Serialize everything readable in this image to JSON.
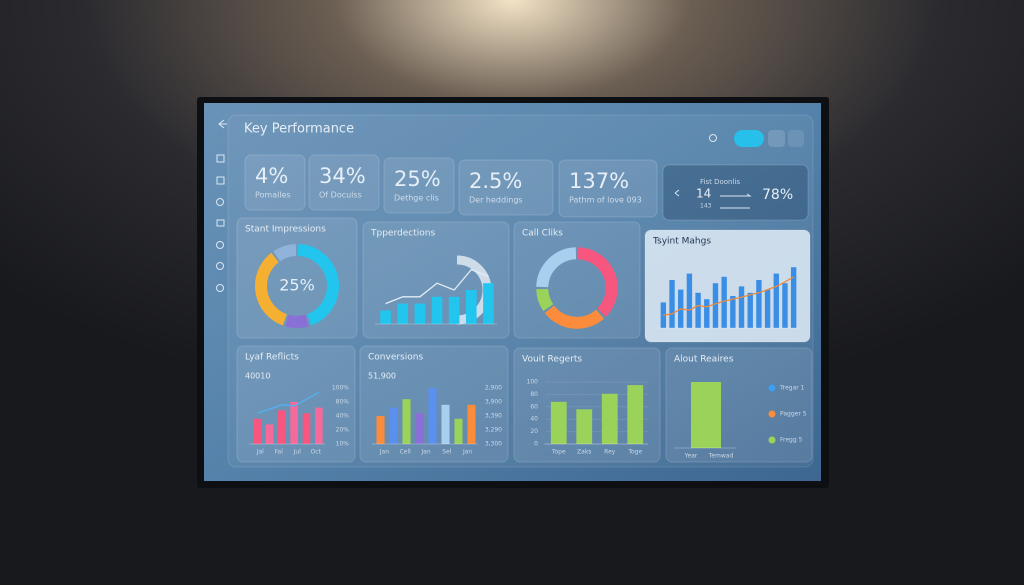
{
  "header": {
    "title": "Key Performance"
  },
  "kpis": [
    {
      "value": "4%",
      "label": "Pomalles"
    },
    {
      "value": "34%",
      "label": "Of Doculss"
    },
    {
      "value": "25%",
      "label": "Dethge clis"
    },
    {
      "value": "2.5%",
      "label": "Der heddings"
    },
    {
      "value": "137%",
      "label": "Pathm of love 093"
    }
  ],
  "summary": {
    "title": "Fist Doonlis",
    "value": "14",
    "sub": "143",
    "pct": "78%"
  },
  "panels": [
    {
      "title": "Stant Impressions",
      "type": "donut",
      "center": "25%",
      "values": [
        45,
        10,
        35,
        10
      ],
      "colors": [
        "#22c5ee",
        "#8a6fd6",
        "#f5b031",
        "#8fb3d9"
      ]
    },
    {
      "title": "Tpperdections",
      "type": "bars_line",
      "bars": [
        2,
        3,
        3,
        4,
        4,
        5,
        6
      ],
      "line": [
        3,
        4,
        4,
        6,
        5,
        8,
        7
      ],
      "ylim": [
        0,
        10
      ],
      "colors": [
        "#22c5ee"
      ],
      "line_color": "#e3edf6"
    },
    {
      "title": "Call Cliks",
      "type": "donut",
      "values": [
        38,
        27,
        10,
        25
      ],
      "colors": [
        "#f7577e",
        "#fb8c3c",
        "#9bd35a",
        "#a9cfee"
      ]
    },
    {
      "title": "Tsyint Mahgs",
      "type": "bars_line",
      "bars": [
        40,
        75,
        60,
        85,
        55,
        45,
        70,
        80,
        50,
        65,
        55,
        75,
        60,
        85,
        70,
        95
      ],
      "line": [
        20,
        22,
        30,
        28,
        35,
        33,
        38,
        42,
        45,
        48,
        52,
        55,
        60,
        65,
        72,
        80
      ],
      "ylim": [
        0,
        100
      ],
      "colors": [
        "#3b8ee6"
      ],
      "line_color": "#f08a3c"
    },
    {
      "title": "Lyaf Reflicts",
      "subtitle": "40010",
      "type": "bars_line",
      "axis_labels": [
        "100%",
        "80%",
        "40%",
        "20%",
        "10%"
      ],
      "xlabels": [
        "Jal",
        "Fal",
        "Jul",
        "Oct"
      ],
      "bars": [
        45,
        35,
        60,
        75,
        55,
        65
      ],
      "line": [
        55,
        62,
        70,
        68,
        80,
        92
      ],
      "ylim": [
        0,
        100
      ],
      "colors": [
        "#f7577e",
        "#f56a9a"
      ],
      "line_color": "#4fb3f0"
    },
    {
      "title": "Conversions",
      "subtitle": "51,900",
      "type": "bars_line",
      "axis_labels": [
        "2,900",
        "3,900",
        "3,390",
        "3,290",
        "3,300"
      ],
      "xlabels": [
        "Jan",
        "Cell",
        "Jan",
        "Sel",
        "Jan"
      ],
      "bars": [
        50,
        65,
        80,
        55,
        100,
        70,
        45,
        70
      ],
      "ylim": [
        0,
        100
      ],
      "colors": [
        "#fb8c3c",
        "#5b8ff0",
        "#9bd35a",
        "#8a6fd6",
        "#5b8ff0",
        "#a9cfee",
        "#9bd35a",
        "#fb8c3c"
      ]
    },
    {
      "title": "Vouit Regerts",
      "type": "bars_line",
      "yticks": [
        0,
        20,
        40,
        60,
        80,
        100
      ],
      "ylim": [
        0,
        100
      ],
      "xlabels": [
        "Tope",
        "Zaks",
        "Rey",
        "Toge"
      ],
      "bars": [
        68,
        56,
        81,
        95
      ],
      "colors": [
        "#9bd35a"
      ]
    },
    {
      "title": "Alout Reaires",
      "type": "bars_line",
      "ylim": [
        0,
        100
      ],
      "xlabels": [
        "Year",
        "Temwad"
      ],
      "bars": [
        100
      ],
      "colors": [
        "#9bd35a"
      ],
      "legend": [
        {
          "name": "Tregar 1",
          "color": "#3ba0f0"
        },
        {
          "name": "Pagger 5",
          "color": "#fb8c3c"
        },
        {
          "name": "Fregg 5",
          "color": "#9bd35a"
        }
      ]
    }
  ]
}
